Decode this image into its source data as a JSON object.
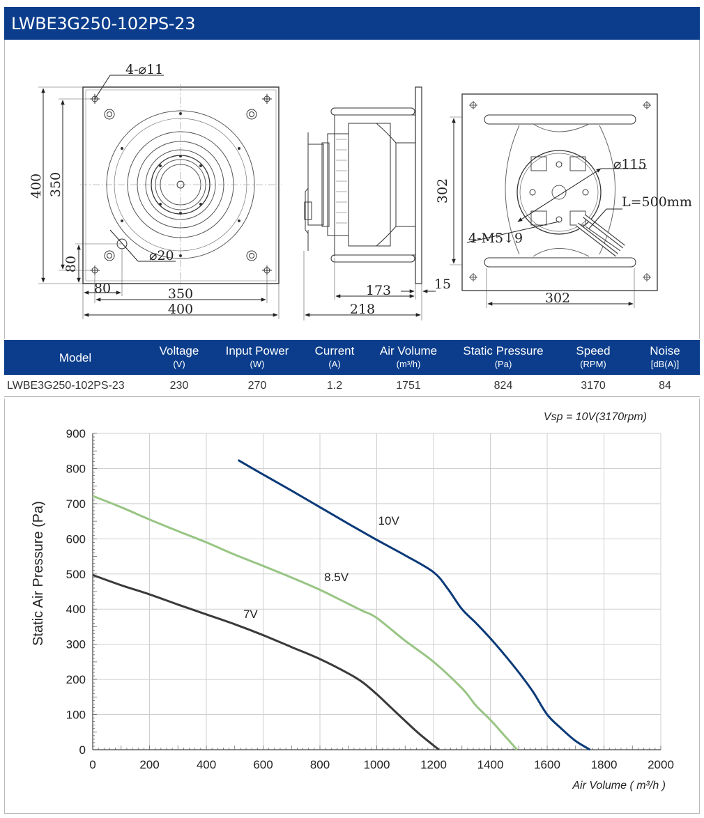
{
  "header": {
    "title": "LWBE3G250-102PS-23"
  },
  "drawing": {
    "front": {
      "hole_label": "4-⌀11",
      "dim_400_v": "400",
      "dim_350_v": "350",
      "dim_80_v": "80",
      "dim_80_h": "80",
      "dim_350_h": "350",
      "dim_400_h": "400",
      "dia_20": "⌀20"
    },
    "side": {
      "dim_173": "173",
      "dim_15": "15",
      "dim_218": "218"
    },
    "back": {
      "dim_302_v": "302",
      "dim_302_h": "302",
      "dia_115": "⌀115",
      "cable": "L=500mm",
      "screw": "4-M5↓9"
    }
  },
  "table": {
    "headers": [
      {
        "name": "Model",
        "unit": ""
      },
      {
        "name": "Voltage",
        "unit": "(V)"
      },
      {
        "name": "Input Power",
        "unit": "(W)"
      },
      {
        "name": "Current",
        "unit": "(A)"
      },
      {
        "name": "Air Volume",
        "unit": "(m³/h)"
      },
      {
        "name": "Static Pressure",
        "unit": "(Pa)"
      },
      {
        "name": "Speed",
        "unit": "(RPM)"
      },
      {
        "name": "Noise",
        "unit": "[dB(A)]"
      }
    ],
    "row": [
      "LWBE3G250-102PS-23",
      "230",
      "270",
      "1.2",
      "1751",
      "824",
      "3170",
      "84"
    ]
  },
  "chart_note": "Vsp = 10V(3170rpm)",
  "chart_data": {
    "type": "line",
    "xlabel": "Air Volume ( m³/h )",
    "ylabel": "Static Air Pressure  (Pa)",
    "xlim": [
      0,
      2000
    ],
    "ylim": [
      0,
      900
    ],
    "x_ticks": [
      "0",
      "200",
      "400",
      "600",
      "800",
      "1000",
      "1200",
      "1400",
      "1600",
      "1800",
      "2000"
    ],
    "y_ticks": [
      "0",
      "100",
      "200",
      "300",
      "400",
      "500",
      "600",
      "700",
      "800",
      "900"
    ],
    "grid": true,
    "series": [
      {
        "name": "10V",
        "color": "#0b3a78",
        "x": [
          512,
          600,
          700,
          800,
          900,
          1000,
          1100,
          1200,
          1250,
          1300,
          1350,
          1400,
          1450,
          1500,
          1550,
          1600,
          1650,
          1700,
          1751
        ],
        "y": [
          824,
          783,
          737,
          690,
          643,
          597,
          553,
          505,
          458,
          400,
          360,
          317,
          270,
          220,
          165,
          100,
          60,
          25,
          0
        ]
      },
      {
        "name": "8.5V",
        "color": "#98c584",
        "x": [
          0,
          100,
          200,
          300,
          400,
          500,
          600,
          700,
          800,
          900,
          950,
          1000,
          1100,
          1200,
          1300,
          1350,
          1400,
          1450,
          1494
        ],
        "y": [
          722,
          690,
          655,
          622,
          590,
          555,
          523,
          490,
          455,
          415,
          395,
          375,
          310,
          250,
          175,
          125,
          85,
          40,
          0
        ]
      },
      {
        "name": "7V",
        "color": "#3a3a3a",
        "x": [
          0,
          100,
          200,
          300,
          400,
          500,
          600,
          700,
          800,
          900,
          950,
          1000,
          1050,
          1100,
          1150,
          1219
        ],
        "y": [
          497,
          468,
          442,
          413,
          385,
          357,
          326,
          292,
          258,
          217,
          192,
          158,
          120,
          82,
          45,
          0
        ]
      }
    ]
  }
}
